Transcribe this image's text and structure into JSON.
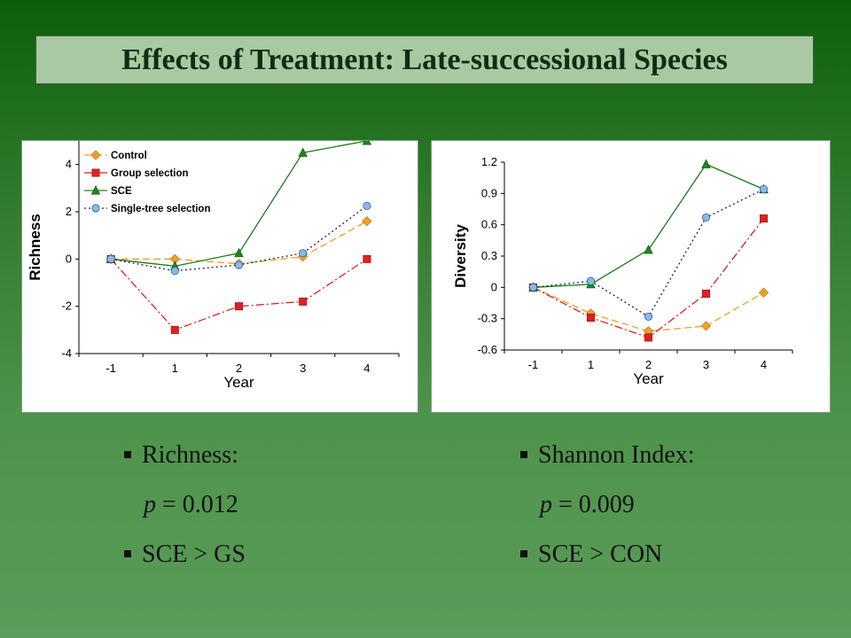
{
  "slide": {
    "title": "Effects of Treatment: Late-successional Species",
    "colors": {
      "bg_top": "#0c5f0c",
      "bg_bottom": "#5b9c58",
      "title_bg": "#a9c9a3",
      "title_text": "#0f2d10"
    }
  },
  "bullets_left": {
    "b1": "Richness:",
    "p_label": "p",
    "p_rest": " = 0.012",
    "b2": "SCE > GS"
  },
  "bullets_right": {
    "b1": "Shannon Index:",
    "p_label": "p",
    "p_rest": " = 0.009",
    "b2": "SCE > CON"
  },
  "chart_data": [
    {
      "type": "line",
      "title": "",
      "xlabel": "Year",
      "ylabel": "Richness",
      "categories": [
        "-1",
        "1",
        "2",
        "3",
        "4"
      ],
      "ylim": [
        -4,
        5
      ],
      "yticks": [
        -4,
        -2,
        0,
        2,
        4
      ],
      "ytick_labels": [
        "-4",
        "-2",
        "0",
        "2",
        "4"
      ],
      "legend": "top-left",
      "series": [
        {
          "name": "Control",
          "values": [
            0,
            0,
            -0.2,
            0.1,
            1.6
          ],
          "color": "#f0a020",
          "marker": "diamond",
          "dash": "8,4"
        },
        {
          "name": "Group selection",
          "values": [
            0,
            -3,
            -2,
            -1.8,
            0
          ],
          "color": "#e02020",
          "marker": "square",
          "dash": "9,3,2,3"
        },
        {
          "name": "SCE",
          "values": [
            0,
            -0.3,
            0.25,
            4.5,
            5
          ],
          "color": "#1a8a1a",
          "marker": "triangle",
          "dash": ""
        },
        {
          "name": "Single-tree selection",
          "values": [
            0,
            -0.5,
            -0.25,
            0.25,
            2.25
          ],
          "color": "#8ab8e8",
          "marker": "circle",
          "dash": "2,3"
        }
      ]
    },
    {
      "type": "line",
      "title": "",
      "xlabel": "Year",
      "ylabel": "Diversity",
      "categories": [
        "-1",
        "1",
        "2",
        "3",
        "4"
      ],
      "ylim": [
        -0.6,
        1.2
      ],
      "yticks": [
        -0.6,
        -0.3,
        0,
        0.3,
        0.6,
        0.9,
        1.2
      ],
      "ytick_labels": [
        "-0.6",
        "-0.3",
        "0",
        "0.3",
        "0.6",
        "0.9",
        "1.2"
      ],
      "legend": "none",
      "series": [
        {
          "name": "Control",
          "values": [
            0,
            -0.25,
            -0.42,
            -0.37,
            -0.05
          ],
          "color": "#f0a020",
          "marker": "diamond",
          "dash": "8,4"
        },
        {
          "name": "Group selection",
          "values": [
            0,
            -0.29,
            -0.48,
            -0.06,
            0.66
          ],
          "color": "#e02020",
          "marker": "square",
          "dash": "9,3,2,3"
        },
        {
          "name": "SCE",
          "values": [
            0,
            0.03,
            0.36,
            1.18,
            0.94
          ],
          "color": "#1a8a1a",
          "marker": "triangle",
          "dash": ""
        },
        {
          "name": "Single-tree selection",
          "values": [
            0,
            0.06,
            -0.28,
            0.67,
            0.94
          ],
          "color": "#8ab8e8",
          "marker": "circle",
          "dash": "2,3"
        }
      ]
    }
  ]
}
